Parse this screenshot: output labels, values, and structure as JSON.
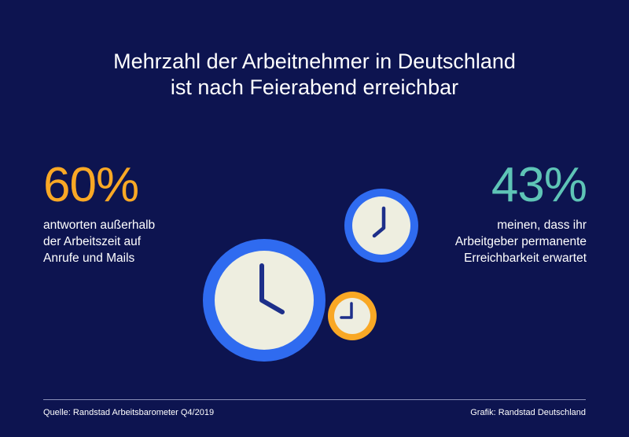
{
  "title": {
    "line1": "Mehrzahl der Arbeitnehmer in Deutschland",
    "line2": "ist nach Feierabend erreichbar"
  },
  "stat_left": {
    "value": "60%",
    "desc_lines": [
      "antworten außerhalb",
      "der Arbeitszeit auf",
      "Anrufe und Mails"
    ]
  },
  "stat_right": {
    "value": "43%",
    "desc_lines": [
      "meinen, dass ihr",
      "Arbeitgeber permanente",
      "Erreichbarkeit erwartet"
    ]
  },
  "footer": {
    "source": "Quelle: Randstad Arbeitsbarometer Q4/2019",
    "credit": "Grafik: Randstad Deutschland"
  },
  "colors": {
    "background": "#0d1450",
    "accent_orange": "#f9a825",
    "accent_teal": "#5ec4b6",
    "clock_blue": "#2f6bf0",
    "clock_face": "#eeeee0",
    "hands": "#1d2f8a"
  },
  "icons": [
    "clock-icon-large",
    "clock-icon-medium",
    "clock-icon-small"
  ]
}
